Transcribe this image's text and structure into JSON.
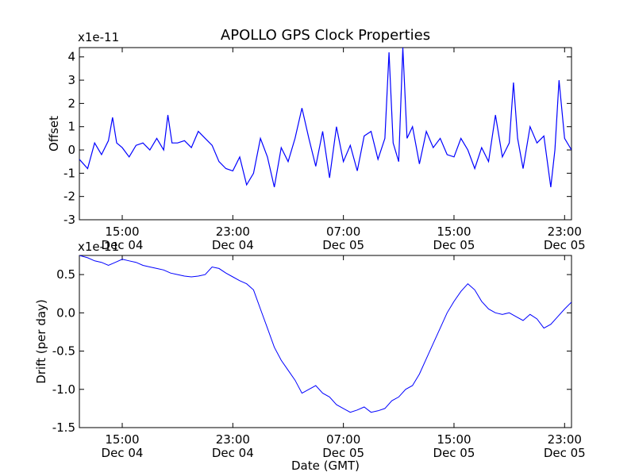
{
  "chart_data": [
    {
      "type": "line",
      "title": "APOLLO GPS Clock Properties",
      "ylabel": "Offset",
      "xlabel": "",
      "y_offset_text": "x1e-11",
      "ylim": [
        -3,
        4.4
      ],
      "xlim_hours": [
        11.9,
        47.5
      ],
      "y_ticks": [
        "-3",
        "-2",
        "-1",
        "0",
        "1",
        "2",
        "3",
        "4"
      ],
      "y_tick_values": [
        -3,
        -2,
        -1,
        0,
        1,
        2,
        3,
        4
      ],
      "x_ticks": [
        {
          "time": "15:00",
          "date": "Dec 04",
          "hours": 15
        },
        {
          "time": "23:00",
          "date": "Dec 04",
          "hours": 23
        },
        {
          "time": "07:00",
          "date": "Dec 05",
          "hours": 31
        },
        {
          "time": "15:00",
          "date": "Dec 05",
          "hours": 39
        },
        {
          "time": "23:00",
          "date": "Dec 05",
          "hours": 47
        }
      ],
      "color": "#0000ff",
      "series": [
        {
          "points": [
            [
              11.9,
              -0.4
            ],
            [
              12.5,
              -0.8
            ],
            [
              13.0,
              0.3
            ],
            [
              13.5,
              -0.2
            ],
            [
              14.0,
              0.4
            ],
            [
              14.3,
              1.4
            ],
            [
              14.6,
              0.3
            ],
            [
              15.0,
              0.1
            ],
            [
              15.5,
              -0.3
            ],
            [
              16.0,
              0.2
            ],
            [
              16.5,
              0.3
            ],
            [
              17.0,
              0.0
            ],
            [
              17.5,
              0.5
            ],
            [
              18.0,
              0.0
            ],
            [
              18.3,
              1.5
            ],
            [
              18.6,
              0.3
            ],
            [
              19.0,
              0.3
            ],
            [
              19.5,
              0.4
            ],
            [
              20.0,
              0.1
            ],
            [
              20.5,
              0.8
            ],
            [
              21.0,
              0.5
            ],
            [
              21.5,
              0.2
            ],
            [
              22.0,
              -0.5
            ],
            [
              22.5,
              -0.8
            ],
            [
              23.0,
              -0.9
            ],
            [
              23.5,
              -0.3
            ],
            [
              24.0,
              -1.5
            ],
            [
              24.5,
              -1.0
            ],
            [
              25.0,
              0.5
            ],
            [
              25.5,
              -0.3
            ],
            [
              26.0,
              -1.6
            ],
            [
              26.5,
              0.1
            ],
            [
              27.0,
              -0.5
            ],
            [
              27.5,
              0.5
            ],
            [
              28.0,
              1.8
            ],
            [
              28.5,
              0.5
            ],
            [
              29.0,
              -0.7
            ],
            [
              29.5,
              0.8
            ],
            [
              30.0,
              -1.2
            ],
            [
              30.5,
              1.0
            ],
            [
              31.0,
              -0.5
            ],
            [
              31.5,
              0.2
            ],
            [
              32.0,
              -0.9
            ],
            [
              32.5,
              0.6
            ],
            [
              33.0,
              0.8
            ],
            [
              33.5,
              -0.4
            ],
            [
              34.0,
              0.5
            ],
            [
              34.3,
              4.2
            ],
            [
              34.6,
              0.3
            ],
            [
              35.0,
              -0.5
            ],
            [
              35.3,
              4.4
            ],
            [
              35.6,
              0.5
            ],
            [
              36.0,
              1.0
            ],
            [
              36.5,
              -0.6
            ],
            [
              37.0,
              0.8
            ],
            [
              37.5,
              0.1
            ],
            [
              38.0,
              0.5
            ],
            [
              38.5,
              -0.2
            ],
            [
              39.0,
              -0.3
            ],
            [
              39.5,
              0.5
            ],
            [
              40.0,
              0.0
            ],
            [
              40.5,
              -0.8
            ],
            [
              41.0,
              0.1
            ],
            [
              41.5,
              -0.5
            ],
            [
              42.0,
              1.5
            ],
            [
              42.5,
              -0.3
            ],
            [
              43.0,
              0.3
            ],
            [
              43.3,
              2.9
            ],
            [
              43.6,
              0.5
            ],
            [
              44.0,
              -0.8
            ],
            [
              44.5,
              1.0
            ],
            [
              45.0,
              0.3
            ],
            [
              45.5,
              0.6
            ],
            [
              46.0,
              -1.6
            ],
            [
              46.3,
              0.0
            ],
            [
              46.6,
              3.0
            ],
            [
              47.0,
              0.5
            ],
            [
              47.5,
              0.0
            ]
          ]
        }
      ]
    },
    {
      "type": "line",
      "title": "",
      "ylabel": "Drift (per day)",
      "xlabel": "Date (GMT)",
      "y_offset_text": "x1e-11",
      "ylim": [
        -1.5,
        0.75
      ],
      "xlim_hours": [
        11.9,
        47.5
      ],
      "y_ticks": [
        "-1.5",
        "-1.0",
        "-0.5",
        "0.0",
        "0.5"
      ],
      "y_tick_values": [
        -1.5,
        -1.0,
        -0.5,
        0.0,
        0.5
      ],
      "x_ticks": [
        {
          "time": "15:00",
          "date": "Dec 04",
          "hours": 15
        },
        {
          "time": "23:00",
          "date": "Dec 04",
          "hours": 23
        },
        {
          "time": "07:00",
          "date": "Dec 05",
          "hours": 31
        },
        {
          "time": "15:00",
          "date": "Dec 05",
          "hours": 39
        },
        {
          "time": "23:00",
          "date": "Dec 05",
          "hours": 47
        }
      ],
      "color": "#0000ff",
      "series": [
        {
          "points": [
            [
              11.9,
              0.75
            ],
            [
              12.5,
              0.72
            ],
            [
              13.0,
              0.68
            ],
            [
              13.5,
              0.66
            ],
            [
              14.0,
              0.62
            ],
            [
              14.5,
              0.66
            ],
            [
              15.0,
              0.7
            ],
            [
              15.5,
              0.68
            ],
            [
              16.0,
              0.66
            ],
            [
              16.5,
              0.62
            ],
            [
              17.0,
              0.6
            ],
            [
              17.5,
              0.58
            ],
            [
              18.0,
              0.56
            ],
            [
              18.5,
              0.52
            ],
            [
              19.0,
              0.5
            ],
            [
              19.5,
              0.48
            ],
            [
              20.0,
              0.47
            ],
            [
              20.5,
              0.48
            ],
            [
              21.0,
              0.5
            ],
            [
              21.5,
              0.6
            ],
            [
              22.0,
              0.58
            ],
            [
              22.5,
              0.52
            ],
            [
              23.0,
              0.47
            ],
            [
              23.5,
              0.42
            ],
            [
              24.0,
              0.38
            ],
            [
              24.5,
              0.3
            ],
            [
              25.0,
              0.05
            ],
            [
              25.5,
              -0.2
            ],
            [
              26.0,
              -0.45
            ],
            [
              26.5,
              -0.62
            ],
            [
              27.0,
              -0.75
            ],
            [
              27.5,
              -0.88
            ],
            [
              28.0,
              -1.05
            ],
            [
              28.5,
              -1.0
            ],
            [
              29.0,
              -0.95
            ],
            [
              29.5,
              -1.05
            ],
            [
              30.0,
              -1.1
            ],
            [
              30.5,
              -1.2
            ],
            [
              31.0,
              -1.25
            ],
            [
              31.5,
              -1.3
            ],
            [
              32.0,
              -1.27
            ],
            [
              32.5,
              -1.23
            ],
            [
              33.0,
              -1.3
            ],
            [
              33.5,
              -1.28
            ],
            [
              34.0,
              -1.25
            ],
            [
              34.5,
              -1.15
            ],
            [
              35.0,
              -1.1
            ],
            [
              35.5,
              -1.0
            ],
            [
              36.0,
              -0.95
            ],
            [
              36.5,
              -0.8
            ],
            [
              37.0,
              -0.6
            ],
            [
              37.5,
              -0.4
            ],
            [
              38.0,
              -0.2
            ],
            [
              38.5,
              0.0
            ],
            [
              39.0,
              0.15
            ],
            [
              39.5,
              0.28
            ],
            [
              40.0,
              0.38
            ],
            [
              40.5,
              0.3
            ],
            [
              41.0,
              0.15
            ],
            [
              41.5,
              0.05
            ],
            [
              42.0,
              0.0
            ],
            [
              42.5,
              -0.02
            ],
            [
              43.0,
              0.0
            ],
            [
              43.5,
              -0.05
            ],
            [
              44.0,
              -0.1
            ],
            [
              44.5,
              -0.02
            ],
            [
              45.0,
              -0.08
            ],
            [
              45.5,
              -0.2
            ],
            [
              46.0,
              -0.15
            ],
            [
              46.5,
              -0.05
            ],
            [
              47.0,
              0.05
            ],
            [
              47.5,
              0.14
            ]
          ]
        }
      ]
    }
  ]
}
